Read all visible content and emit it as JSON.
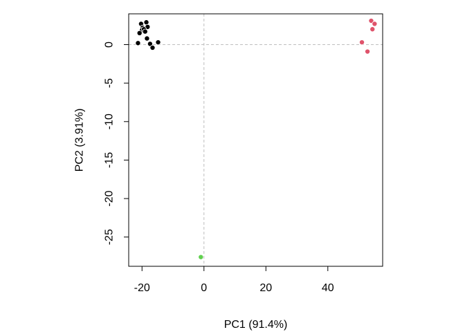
{
  "chart_data": {
    "type": "scatter",
    "title": "",
    "xlabel": "PC1 (91.4%)",
    "ylabel": "PC2 (3.91%)",
    "xlim": [
      -24.3,
      57.7
    ],
    "ylim": [
      -28.8,
      4.0
    ],
    "xticks": [
      -20,
      0,
      20,
      40
    ],
    "xtick_labels": [
      "-20",
      "0",
      "20",
      "40"
    ],
    "yticks": [
      0,
      -5,
      -10,
      -15,
      -20,
      -25
    ],
    "ytick_labels": [
      "0",
      "-5",
      "-10",
      "-15",
      "-20",
      "-25"
    ],
    "grid": false,
    "reference_lines": [
      {
        "orientation": "vertical",
        "value": 0,
        "style": "dashed",
        "color": "#bebebe"
      },
      {
        "orientation": "horizontal",
        "value": 0,
        "style": "dashed",
        "color": "#bebebe"
      }
    ],
    "series": [
      {
        "color": "#000000",
        "points": [
          {
            "x": -20.3,
            "y": 2.7
          },
          {
            "x": -19.8,
            "y": 2.2
          },
          {
            "x": -18.6,
            "y": 2.9
          },
          {
            "x": -18.2,
            "y": 2.3
          },
          {
            "x": -20.0,
            "y": 1.9
          },
          {
            "x": -19.4,
            "y": 2.0
          },
          {
            "x": -20.8,
            "y": 1.5
          },
          {
            "x": -19.0,
            "y": 1.7
          },
          {
            "x": -21.3,
            "y": 0.2
          },
          {
            "x": -18.4,
            "y": 0.8
          },
          {
            "x": -17.4,
            "y": 0.1
          },
          {
            "x": -16.6,
            "y": -0.4
          },
          {
            "x": -14.8,
            "y": 0.3
          }
        ]
      },
      {
        "color": "#df536b",
        "points": [
          {
            "x": 54.0,
            "y": 3.1
          },
          {
            "x": 55.1,
            "y": 2.7
          },
          {
            "x": 54.4,
            "y": 2.0
          },
          {
            "x": 51.0,
            "y": 0.3
          },
          {
            "x": 52.8,
            "y": -0.9
          }
        ]
      },
      {
        "color": "#61d04f",
        "points": [
          {
            "x": -1.0,
            "y": -27.6
          }
        ]
      }
    ]
  }
}
